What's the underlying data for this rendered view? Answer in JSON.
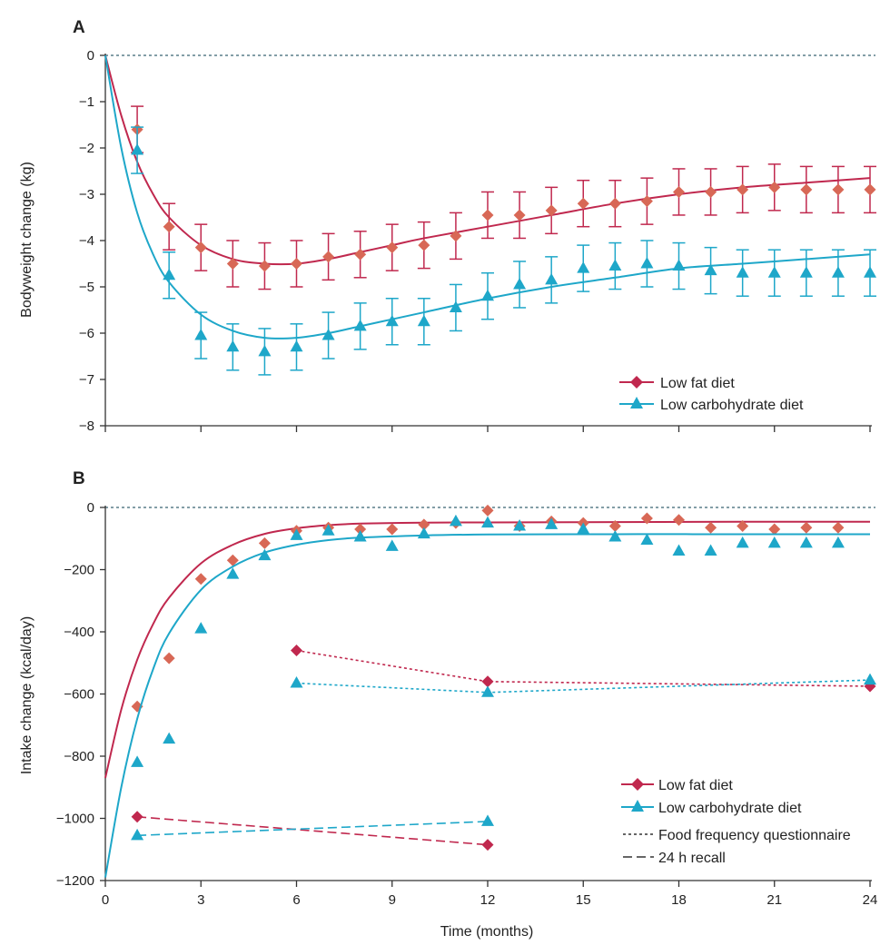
{
  "colors": {
    "low_fat": "#c0284e",
    "low_fat_marker": "#d86856",
    "low_carb": "#1ea7c9",
    "axis": "#333333",
    "zero_line": "#5a7f8a"
  },
  "chart_data": [
    {
      "panel": "A",
      "type": "line",
      "ylabel": "Bodyweight change (kg)",
      "xlabel": "",
      "xlim": [
        0,
        24
      ],
      "ylim": [
        -8,
        0
      ],
      "x_ticks": [
        0,
        3,
        6,
        9,
        12,
        15,
        18,
        21,
        24
      ],
      "y_ticks": [
        0,
        -1,
        -2,
        -3,
        -4,
        -5,
        -6,
        -7,
        -8
      ],
      "zero_reference_line": true,
      "legend_position": "bottom-right",
      "series": [
        {
          "name": "Low fat diet",
          "marker": "diamond",
          "x": [
            1,
            2,
            3,
            4,
            5,
            6,
            7,
            8,
            9,
            10,
            11,
            12,
            13,
            14,
            15,
            16,
            17,
            18,
            19,
            20,
            21,
            22,
            23,
            24
          ],
          "y": [
            -1.6,
            -3.7,
            -4.15,
            -4.5,
            -4.55,
            -4.5,
            -4.35,
            -4.3,
            -4.15,
            -4.1,
            -3.9,
            -3.45,
            -3.45,
            -3.35,
            -3.2,
            -3.2,
            -3.15,
            -2.95,
            -2.95,
            -2.9,
            -2.85,
            -2.9,
            -2.9,
            -2.9
          ],
          "error": [
            0.5,
            0.5,
            0.5,
            0.5,
            0.5,
            0.5,
            0.5,
            0.5,
            0.5,
            0.5,
            0.5,
            0.5,
            0.5,
            0.5,
            0.5,
            0.5,
            0.5,
            0.5,
            0.5,
            0.5,
            0.5,
            0.5,
            0.5,
            0.5
          ],
          "fit_curve": [
            [
              0,
              0
            ],
            [
              0.5,
              -1.3
            ],
            [
              1,
              -2.3
            ],
            [
              1.5,
              -3.0
            ],
            [
              2,
              -3.5
            ],
            [
              3,
              -4.1
            ],
            [
              4,
              -4.4
            ],
            [
              5,
              -4.5
            ],
            [
              6,
              -4.5
            ],
            [
              7,
              -4.4
            ],
            [
              8,
              -4.25
            ],
            [
              9,
              -4.1
            ],
            [
              10,
              -3.95
            ],
            [
              12,
              -3.7
            ],
            [
              14,
              -3.45
            ],
            [
              16,
              -3.2
            ],
            [
              18,
              -3.0
            ],
            [
              20,
              -2.85
            ],
            [
              22,
              -2.75
            ],
            [
              24,
              -2.65
            ]
          ]
        },
        {
          "name": "Low carbohydrate diet",
          "marker": "triangle",
          "x": [
            1,
            2,
            3,
            4,
            5,
            6,
            7,
            8,
            9,
            10,
            11,
            12,
            13,
            14,
            15,
            16,
            17,
            18,
            19,
            20,
            21,
            22,
            23,
            24
          ],
          "y": [
            -2.05,
            -4.75,
            -6.05,
            -6.3,
            -6.4,
            -6.3,
            -6.05,
            -5.85,
            -5.75,
            -5.75,
            -5.45,
            -5.2,
            -4.95,
            -4.85,
            -4.6,
            -4.55,
            -4.5,
            -4.55,
            -4.65,
            -4.7,
            -4.7,
            -4.7,
            -4.7,
            -4.7
          ],
          "error": [
            0.5,
            0.5,
            0.5,
            0.5,
            0.5,
            0.5,
            0.5,
            0.5,
            0.5,
            0.5,
            0.5,
            0.5,
            0.5,
            0.5,
            0.5,
            0.5,
            0.5,
            0.5,
            0.5,
            0.5,
            0.5,
            0.5,
            0.5,
            0.5
          ],
          "fit_curve": [
            [
              0,
              0
            ],
            [
              0.5,
              -2.0
            ],
            [
              1,
              -3.4
            ],
            [
              1.5,
              -4.3
            ],
            [
              2,
              -4.9
            ],
            [
              3,
              -5.6
            ],
            [
              4,
              -5.95
            ],
            [
              5,
              -6.1
            ],
            [
              6,
              -6.1
            ],
            [
              7,
              -6.0
            ],
            [
              8,
              -5.85
            ],
            [
              9,
              -5.7
            ],
            [
              10,
              -5.55
            ],
            [
              12,
              -5.25
            ],
            [
              14,
              -5.0
            ],
            [
              16,
              -4.8
            ],
            [
              18,
              -4.6
            ],
            [
              20,
              -4.5
            ],
            [
              22,
              -4.4
            ],
            [
              24,
              -4.3
            ]
          ]
        }
      ]
    },
    {
      "panel": "B",
      "type": "line",
      "ylabel": "Intake change (kcal/day)",
      "xlabel": "Time (months)",
      "xlim": [
        0,
        24
      ],
      "ylim": [
        -1200,
        0
      ],
      "x_ticks": [
        0,
        3,
        6,
        9,
        12,
        15,
        18,
        21,
        24
      ],
      "y_ticks": [
        0,
        -200,
        -400,
        -600,
        -800,
        -1000,
        -1200
      ],
      "zero_reference_line": true,
      "legend_position": "bottom-right",
      "series": [
        {
          "name": "Low fat diet",
          "marker": "diamond",
          "x": [
            1,
            2,
            3,
            4,
            5,
            6,
            7,
            8,
            9,
            10,
            11,
            12,
            13,
            14,
            15,
            16,
            17,
            18,
            19,
            20,
            21,
            22,
            23
          ],
          "y": [
            -640,
            -485,
            -230,
            -170,
            -115,
            -75,
            -65,
            -70,
            -70,
            -55,
            -50,
            -10,
            -60,
            -45,
            -50,
            -60,
            -35,
            -40,
            -65,
            -60,
            -70,
            -65,
            -65
          ],
          "fit_curve": [
            [
              0,
              -870
            ],
            [
              0.5,
              -650
            ],
            [
              1,
              -490
            ],
            [
              1.5,
              -375
            ],
            [
              2,
              -290
            ],
            [
              3,
              -180
            ],
            [
              4,
              -120
            ],
            [
              5,
              -85
            ],
            [
              6,
              -67
            ],
            [
              7,
              -57
            ],
            [
              8,
              -52
            ],
            [
              10,
              -49
            ],
            [
              12,
              -48
            ],
            [
              16,
              -47
            ],
            [
              20,
              -46
            ],
            [
              24,
              -46
            ]
          ]
        },
        {
          "name": "Low carbohydrate diet",
          "marker": "triangle",
          "x": [
            1,
            2,
            3,
            4,
            5,
            6,
            7,
            8,
            9,
            10,
            11,
            12,
            13,
            14,
            15,
            16,
            17,
            18,
            19,
            20,
            21,
            22,
            23
          ],
          "y": [
            -820,
            -745,
            -390,
            -215,
            -155,
            -90,
            -75,
            -95,
            -125,
            -85,
            -45,
            -50,
            -60,
            -55,
            -70,
            -95,
            -105,
            -140,
            -140,
            -115,
            -115,
            -115,
            -115
          ],
          "fit_curve": [
            [
              0,
              -1190
            ],
            [
              0.5,
              -900
            ],
            [
              1,
              -680
            ],
            [
              1.5,
              -520
            ],
            [
              2,
              -405
            ],
            [
              3,
              -265
            ],
            [
              4,
              -190
            ],
            [
              5,
              -145
            ],
            [
              6,
              -120
            ],
            [
              7,
              -105
            ],
            [
              8,
              -97
            ],
            [
              10,
              -90
            ],
            [
              12,
              -87
            ],
            [
              16,
              -86
            ],
            [
              20,
              -86
            ],
            [
              24,
              -86
            ]
          ]
        },
        {
          "name": "Low fat diet",
          "method": "Food frequency questionnaire",
          "marker": "diamond",
          "line_style": "dotted",
          "x": [
            6,
            12,
            24
          ],
          "y": [
            -460,
            -560,
            -575
          ]
        },
        {
          "name": "Low carbohydrate diet",
          "method": "Food frequency questionnaire",
          "marker": "triangle",
          "line_style": "dotted",
          "x": [
            6,
            12,
            24
          ],
          "y": [
            -565,
            -595,
            -555
          ]
        },
        {
          "name": "Low fat diet",
          "method": "24 h recall",
          "marker": "diamond",
          "line_style": "dashed",
          "x": [
            1,
            12
          ],
          "y": [
            -995,
            -1085
          ]
        },
        {
          "name": "Low carbohydrate diet",
          "method": "24 h recall",
          "marker": "triangle",
          "line_style": "dashed",
          "x": [
            1,
            12
          ],
          "y": [
            -1055,
            -1010
          ]
        }
      ],
      "legend_line_styles": [
        "Food frequency questionnaire",
        "24 h recall"
      ]
    }
  ]
}
